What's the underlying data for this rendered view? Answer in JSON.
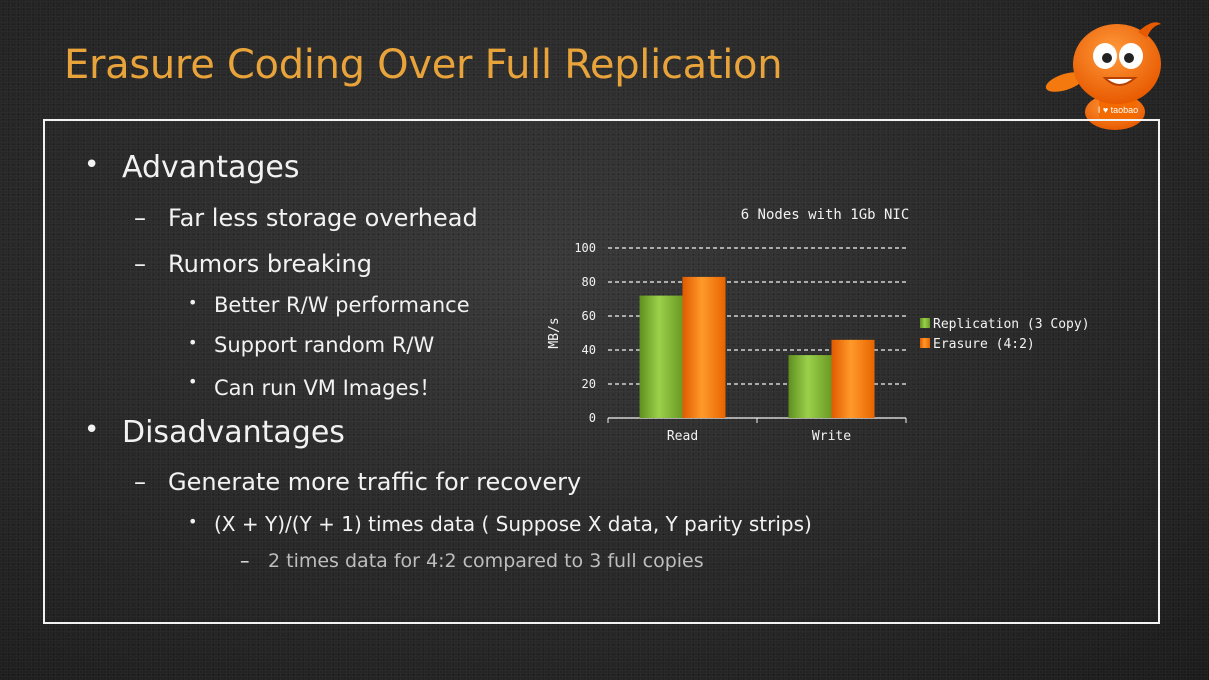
{
  "title": "Erasure Coding Over Full Replication",
  "bullets": {
    "advantages": "Advantages",
    "storage": "Far less storage overhead",
    "rumors": "Rumors breaking",
    "rw_perf": "Better R/W performance",
    "random_rw": "Support random R/W",
    "vm_images": "Can run VM Images！",
    "disadvantages": "Disadvantages",
    "traffic": "Generate more traffic for recovery",
    "formula": "(X + Y)/(Y + 1) times data ( Suppose X data, Y parity strips)",
    "example": "2 times data for 4:2 compared to 3 full copies"
  },
  "markers": {
    "bullet": "•",
    "dash": "–"
  },
  "mascot_text": "I ♥ taobao",
  "colors": {
    "title": "#e8a33a",
    "replication": "#8cc63f",
    "erasure": "#ff7a00",
    "text": "#f2f2f2"
  },
  "chart_data": {
    "type": "bar",
    "title": "6 Nodes with 1Gb NIC",
    "ylabel": "MB/s",
    "xlabel": "",
    "categories": [
      "Read",
      "Write"
    ],
    "series": [
      {
        "name": "Replication (3 Copy)",
        "values": [
          72,
          37
        ]
      },
      {
        "name": "Erasure (4:2)",
        "values": [
          83,
          46
        ]
      }
    ],
    "ylim": [
      0,
      100
    ],
    "yticks": [
      0,
      20,
      40,
      60,
      80,
      100
    ],
    "grid": "dashed",
    "legend": "right"
  }
}
